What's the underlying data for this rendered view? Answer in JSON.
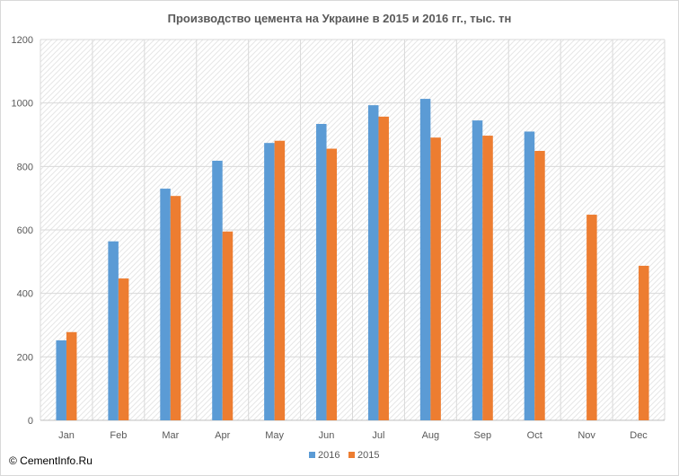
{
  "chart_data": {
    "type": "bar",
    "title": "Производство цемента на Украине в 2015 и 2016 гг., тыс. тн",
    "xlabel": "",
    "ylabel": "",
    "categories": [
      "Jan",
      "Feb",
      "Mar",
      "Apr",
      "May",
      "Jun",
      "Jul",
      "Aug",
      "Sep",
      "Oct",
      "Nov",
      "Dec"
    ],
    "series": [
      {
        "name": "2016",
        "color": "#5b9bd5",
        "values": [
          252,
          564,
          730,
          818,
          874,
          934,
          993,
          1013,
          945,
          910,
          null,
          null
        ]
      },
      {
        "name": "2015",
        "color": "#ed7d31",
        "values": [
          278,
          447,
          707,
          595,
          881,
          856,
          957,
          891,
          897,
          849,
          648,
          487
        ]
      }
    ],
    "ylim": [
      0,
      1200
    ],
    "yticks": [
      "0",
      "200",
      "400",
      "600",
      "800",
      "1000",
      "1200"
    ],
    "grid": true,
    "legend_position": "bottom"
  },
  "watermark": "© CementInfo.Ru"
}
